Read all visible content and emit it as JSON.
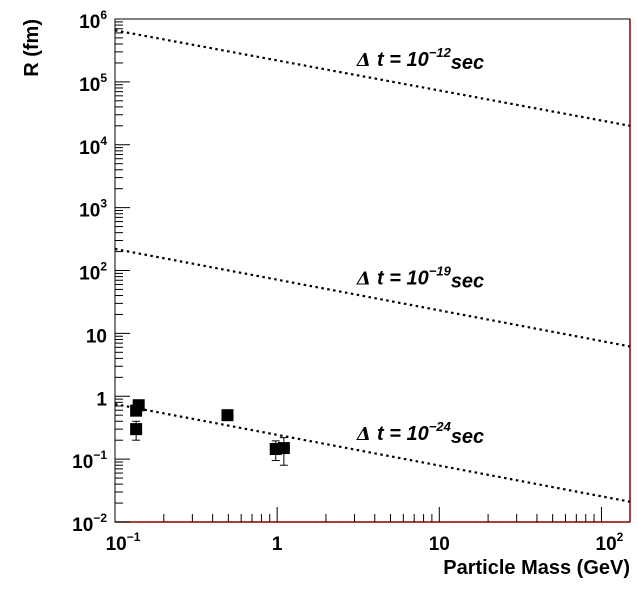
{
  "chart_data": {
    "type": "scatter",
    "title": "",
    "xlabel": "Particle Mass (GeV)",
    "ylabel": "R (fm)",
    "xscale": "log",
    "yscale": "log",
    "xlim": [
      0.1,
      150
    ],
    "ylim": [
      0.01,
      1000000
    ],
    "grid": false,
    "legend": "none",
    "x_ticks": [
      {
        "value": 0.1,
        "base": "10",
        "exp": "−1"
      },
      {
        "value": 1,
        "base": "1",
        "exp": ""
      },
      {
        "value": 10,
        "base": "10",
        "exp": ""
      },
      {
        "value": 100,
        "base": "10",
        "exp": "2"
      }
    ],
    "y_ticks": [
      {
        "value": 0.01,
        "base": "10",
        "exp": "−2"
      },
      {
        "value": 0.1,
        "base": "10",
        "exp": "−1"
      },
      {
        "value": 1,
        "base": "1",
        "exp": ""
      },
      {
        "value": 10,
        "base": "10",
        "exp": ""
      },
      {
        "value": 100,
        "base": "10",
        "exp": "2"
      },
      {
        "value": 1000,
        "base": "10",
        "exp": "3"
      },
      {
        "value": 10000,
        "base": "10",
        "exp": "4"
      },
      {
        "value": 100000,
        "base": "10",
        "exp": "5"
      },
      {
        "value": 1000000,
        "base": "10",
        "exp": "6"
      }
    ],
    "series": [
      {
        "marker": "square",
        "color": "#000000",
        "points": [
          {
            "x": 0.135,
            "y": 0.59,
            "err": 0.1
          },
          {
            "x": 0.135,
            "y": 0.3,
            "err": 0.1
          },
          {
            "x": 0.14,
            "y": 0.72,
            "err": 0.05
          },
          {
            "x": 0.494,
            "y": 0.5,
            "err": 0.04
          },
          {
            "x": 0.98,
            "y": 0.145,
            "err": 0.05
          },
          {
            "x": 1.1,
            "y": 0.15,
            "err": 0.07
          }
        ]
      }
    ],
    "lines": [
      {
        "style": "dotted",
        "x": [
          0.1,
          150
        ],
        "y": [
          660000,
          20000
        ],
        "label_prefix": "t = 10",
        "label_exp": "−12",
        "label_suffix": "sec",
        "label_delta": "Δ",
        "label_at": {
          "x": 3.1,
          "y": 180000
        }
      },
      {
        "style": "dotted",
        "x": [
          0.1,
          150
        ],
        "y": [
          220,
          6.2
        ],
        "label_prefix": "t = 10",
        "label_exp": "−19",
        "label_suffix": "sec",
        "label_delta": "Δ",
        "label_at": {
          "x": 3.1,
          "y": 60
        }
      },
      {
        "style": "dotted",
        "x": [
          0.1,
          150
        ],
        "y": [
          0.75,
          0.021
        ],
        "label_prefix": "t = 10",
        "label_exp": "−24",
        "label_suffix": "sec",
        "label_delta": "Δ",
        "label_at": {
          "x": 3.1,
          "y": 0.2
        }
      }
    ]
  }
}
